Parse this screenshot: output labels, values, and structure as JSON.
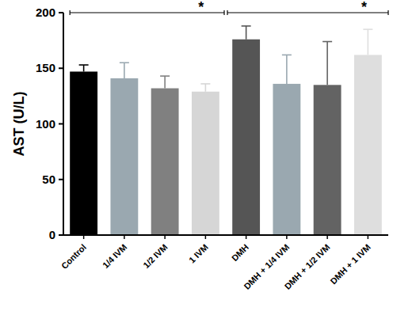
{
  "chart_data": {
    "type": "bar",
    "y_label": "AST (U/L)",
    "categories": [
      "Control",
      "1/4 IVM",
      "1/2 IVM",
      "1 IVM",
      "DMH",
      "DMH + 1/4 IVM",
      "DMH + 1/2 IVM",
      "DMH + 1 IVM"
    ],
    "values": [
      147,
      141,
      132,
      129,
      176,
      136,
      135,
      162
    ],
    "errors": [
      6,
      14,
      11,
      7,
      12,
      26,
      39,
      23
    ],
    "colors": [
      "#000000",
      "#9aa8b0",
      "#808080",
      "#d6d6d6",
      "#555555",
      "#9aa8b0",
      "#636363",
      "#dedede"
    ],
    "ylim": [
      0,
      200
    ],
    "yticks": [
      0,
      50,
      100,
      150,
      200
    ],
    "grid": false,
    "annotations": [
      {
        "text": "*",
        "from": "Control",
        "to": "DMH"
      },
      {
        "text": "*",
        "from": "DMH",
        "to": "DMH + 1 IVM"
      }
    ]
  }
}
